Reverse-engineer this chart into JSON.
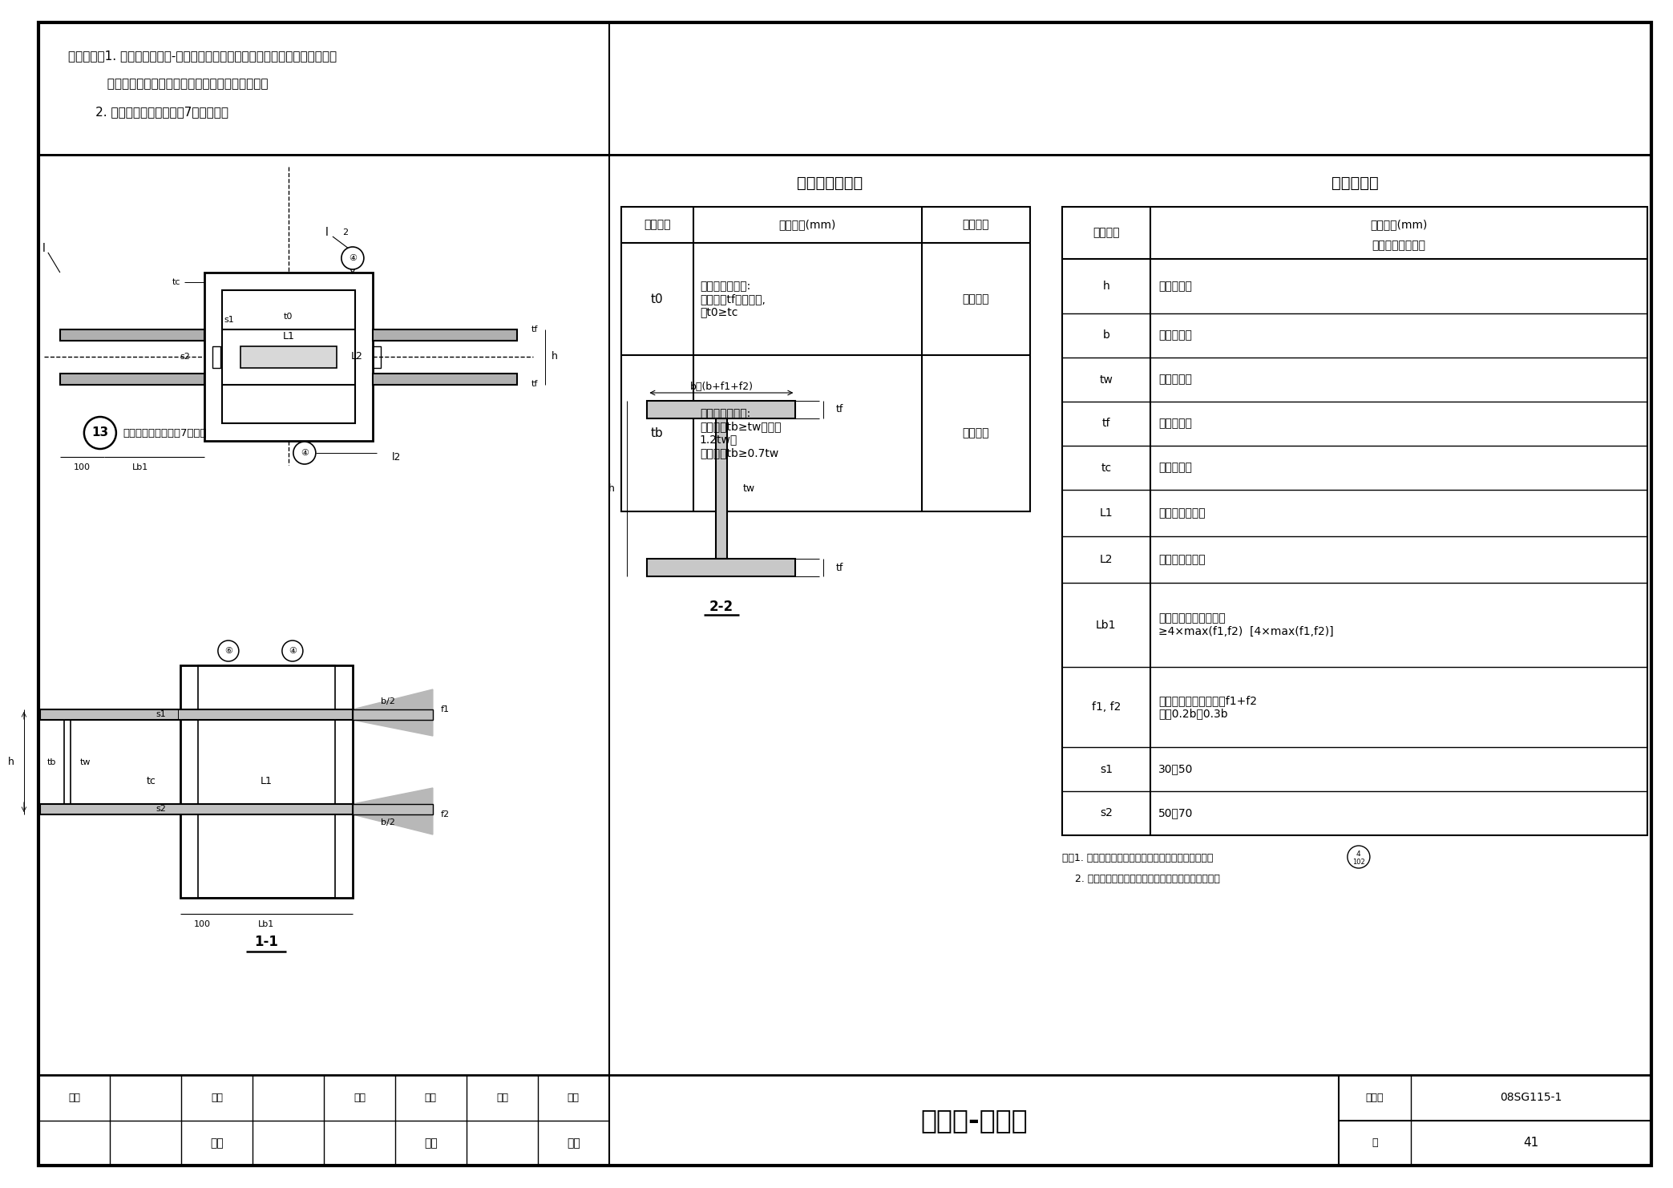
{
  "title_text": "箱形柱-梁节点",
  "figure_number": "08SG115-1",
  "page_number": "41",
  "bg_color": "#ffffff",
  "scope_lines": [
    "适用范围：1. 多层钢结构、钢-混凝土混合结构中的钢框架，当梁柱连接焊接工艺",
    "          及构造措施有可靠保障时，也可用于高层钢结构；",
    "       2. 地震设防烈度不宜高于7度地震区。"
  ],
  "thickness_table_title": "节点钢板厚度表",
  "param_table_title": "节点参数表",
  "footer_labels": [
    "审核",
    "审林",
    "校对",
    "刘岩",
    "设计",
    "王喆",
    "页",
    "41"
  ],
  "weld_note": "节点区未标注焊缝为7号焊缝",
  "note_line1": "注：1. 腹板连接板选用形式及与柱的连接方式详见节点",
  "note_line2": "    2. 节点图中梁、柱平面定位关系由平面布置图确定。",
  "section_22": "2-2",
  "section_11": "1-1"
}
